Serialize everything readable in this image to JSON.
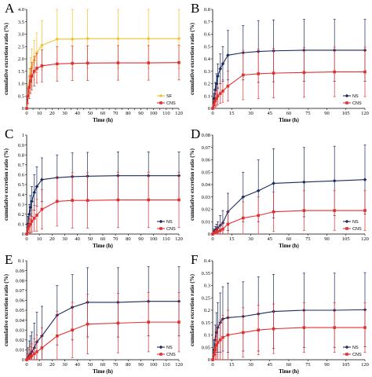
{
  "colors": {
    "SF": "#f2c12e",
    "CNS": "#e03131",
    "NS": "#1b2a5e"
  },
  "chart_data": [
    {
      "panel": "A",
      "type": "line",
      "x": [
        0,
        1,
        2,
        3,
        4,
        6,
        8,
        12,
        24,
        36,
        48,
        72,
        96,
        120
      ],
      "xlabel": "Time (h)",
      "ylabel": "cumulative excretion ratio (%)",
      "xlim": [
        0,
        120
      ],
      "xticks": [
        0,
        5,
        10,
        15,
        20,
        25,
        30,
        35,
        40,
        45,
        50,
        55,
        60,
        65,
        70,
        75,
        80,
        85,
        90,
        95,
        100,
        105,
        110,
        115,
        120
      ],
      "xtick_labels": [
        "0",
        "",
        "10",
        "",
        "20",
        "",
        "30",
        "",
        "40",
        "",
        "50",
        "",
        "60",
        "",
        "70",
        "",
        "80",
        "",
        "90",
        "",
        "100",
        "",
        "110",
        "",
        "120"
      ],
      "ylim": [
        0,
        4
      ],
      "yticks": [
        0,
        0.5,
        1.0,
        1.5,
        2.0,
        2.5,
        3.0,
        3.5,
        4.0
      ],
      "ytick_labels": [
        "0",
        "0.5",
        "1.0",
        "1.5",
        "2.0",
        "2.5",
        "3.0",
        "3.5",
        "4.0"
      ],
      "legend_position": "bottom-right",
      "series": [
        {
          "name": "SF",
          "color": "#f2c12e",
          "marker": "circle",
          "values": [
            0,
            0.55,
            1.0,
            1.35,
            1.65,
            1.95,
            2.25,
            2.55,
            2.8,
            2.8,
            2.82,
            2.82,
            2.82,
            2.82
          ],
          "errors": [
            0,
            0.4,
            0.6,
            0.7,
            0.75,
            0.8,
            0.8,
            1.0,
            1.2,
            1.2,
            1.2,
            1.2,
            1.2,
            1.2
          ]
        },
        {
          "name": "CNS",
          "color": "#e03131",
          "marker": "square",
          "values": [
            0,
            0.5,
            0.85,
            1.1,
            1.3,
            1.5,
            1.62,
            1.72,
            1.8,
            1.82,
            1.83,
            1.84,
            1.84,
            1.85
          ],
          "errors": [
            0,
            0.3,
            0.45,
            0.5,
            0.55,
            0.6,
            0.6,
            0.65,
            0.7,
            0.7,
            0.7,
            0.7,
            0.7,
            0.7
          ]
        }
      ]
    },
    {
      "panel": "B",
      "type": "line",
      "x": [
        0,
        1,
        2,
        3,
        4,
        6,
        8,
        12,
        24,
        36,
        48,
        72,
        96,
        120
      ],
      "xlabel": "Time (h)",
      "ylabel": "cumulative excretion ratio (%)",
      "xlim": [
        0,
        120
      ],
      "xticks": [
        0,
        15,
        30,
        45,
        60,
        75,
        90,
        105,
        120
      ],
      "xtick_labels": [
        "0",
        "15",
        "30",
        "45",
        "60",
        "75",
        "90",
        "105",
        "120"
      ],
      "ylim": [
        0,
        0.8
      ],
      "yticks": [
        0,
        0.1,
        0.2,
        0.3,
        0.4,
        0.5,
        0.6,
        0.7,
        0.8
      ],
      "ytick_labels": [
        "0",
        "0.1",
        "0.2",
        "0.3",
        "0.4",
        "0.5",
        "0.6",
        "0.7",
        "0.8"
      ],
      "legend_position": "bottom-right",
      "series": [
        {
          "name": "NS",
          "color": "#1b2a5e",
          "marker": "diamond",
          "values": [
            0,
            0.08,
            0.15,
            0.2,
            0.26,
            0.32,
            0.36,
            0.43,
            0.45,
            0.46,
            0.465,
            0.47,
            0.47,
            0.47
          ],
          "errors": [
            0,
            0.04,
            0.06,
            0.08,
            0.1,
            0.12,
            0.14,
            0.2,
            0.22,
            0.25,
            0.25,
            0.25,
            0.25,
            0.25
          ]
        },
        {
          "name": "CNS",
          "color": "#e03131",
          "marker": "square",
          "values": [
            0,
            0.03,
            0.06,
            0.08,
            0.1,
            0.12,
            0.14,
            0.18,
            0.27,
            0.28,
            0.285,
            0.29,
            0.295,
            0.295
          ],
          "errors": [
            0,
            0.03,
            0.05,
            0.06,
            0.07,
            0.08,
            0.09,
            0.12,
            0.2,
            0.2,
            0.2,
            0.2,
            0.2,
            0.2
          ]
        }
      ]
    },
    {
      "panel": "C",
      "type": "line",
      "x": [
        0,
        1,
        2,
        3,
        4,
        6,
        8,
        12,
        24,
        36,
        48,
        72,
        96,
        120
      ],
      "xlabel": "Time (h)",
      "ylabel": "cumulative excretion ratio (%)",
      "xlim": [
        0,
        120
      ],
      "xticks": [
        0,
        10,
        20,
        30,
        40,
        50,
        60,
        70,
        80,
        90,
        100,
        110,
        120
      ],
      "xtick_labels": [
        "0",
        "10",
        "20",
        "30",
        "40",
        "50",
        "60",
        "70",
        "80",
        "90",
        "100",
        "110",
        "120"
      ],
      "ylim": [
        0,
        1
      ],
      "yticks": [
        0,
        0.1,
        0.2,
        0.3,
        0.4,
        0.5,
        0.6,
        0.7,
        0.8,
        0.9,
        1
      ],
      "ytick_labels": [
        "0",
        "0.1",
        "0.2",
        "0.3",
        "0.4",
        "0.5",
        "0.6",
        "0.7",
        "0.8",
        "0.9",
        "1"
      ],
      "legend_position": "bottom-right",
      "series": [
        {
          "name": "NS",
          "color": "#1b2a5e",
          "marker": "diamond",
          "values": [
            0,
            0.1,
            0.2,
            0.27,
            0.33,
            0.42,
            0.48,
            0.55,
            0.57,
            0.58,
            0.585,
            0.59,
            0.59,
            0.59
          ],
          "errors": [
            0,
            0.08,
            0.1,
            0.12,
            0.15,
            0.18,
            0.2,
            0.22,
            0.23,
            0.24,
            0.24,
            0.24,
            0.24,
            0.24
          ]
        },
        {
          "name": "CNS",
          "color": "#e03131",
          "marker": "square",
          "values": [
            0,
            0.05,
            0.08,
            0.1,
            0.13,
            0.16,
            0.19,
            0.25,
            0.33,
            0.34,
            0.34,
            0.345,
            0.345,
            0.345
          ],
          "errors": [
            0,
            0.05,
            0.07,
            0.09,
            0.11,
            0.13,
            0.16,
            0.2,
            0.25,
            0.28,
            0.28,
            0.28,
            0.28,
            0.28
          ]
        }
      ]
    },
    {
      "panel": "D",
      "type": "line",
      "x": [
        0,
        1,
        2,
        3,
        4,
        6,
        8,
        12,
        24,
        36,
        48,
        72,
        96,
        120
      ],
      "xlabel": "Time (h)",
      "ylabel": "cumulative excretion ratio (%)",
      "xlim": [
        0,
        120
      ],
      "xticks": [
        0,
        15,
        30,
        45,
        60,
        75,
        90,
        105,
        120
      ],
      "xtick_labels": [
        "0",
        "15",
        "30",
        "45",
        "60",
        "75",
        "90",
        "105",
        "120"
      ],
      "ylim": [
        0,
        0.08
      ],
      "yticks": [
        0,
        0.01,
        0.02,
        0.03,
        0.04,
        0.05,
        0.06,
        0.07,
        0.08
      ],
      "ytick_labels": [
        "0",
        "0.01",
        "0.02",
        "0.03",
        "0.04",
        "0.05",
        "0.06",
        "0.07",
        "0.08"
      ],
      "legend_position": "bottom-right",
      "series": [
        {
          "name": "NS",
          "color": "#1b2a5e",
          "marker": "diamond",
          "values": [
            0,
            0.002,
            0.003,
            0.004,
            0.005,
            0.007,
            0.009,
            0.018,
            0.03,
            0.035,
            0.041,
            0.042,
            0.043,
            0.044
          ],
          "errors": [
            0,
            0.002,
            0.003,
            0.004,
            0.005,
            0.008,
            0.01,
            0.015,
            0.02,
            0.025,
            0.028,
            0.028,
            0.028,
            0.028
          ]
        },
        {
          "name": "CNS",
          "color": "#e03131",
          "marker": "square",
          "values": [
            0,
            0.001,
            0.001,
            0.002,
            0.002,
            0.003,
            0.004,
            0.008,
            0.013,
            0.015,
            0.018,
            0.019,
            0.019,
            0.019
          ],
          "errors": [
            0,
            0.001,
            0.002,
            0.002,
            0.003,
            0.004,
            0.005,
            0.01,
            0.013,
            0.015,
            0.016,
            0.016,
            0.016,
            0.016
          ]
        }
      ]
    },
    {
      "panel": "E",
      "type": "line",
      "x": [
        0,
        1,
        2,
        3,
        4,
        6,
        8,
        12,
        24,
        36,
        48,
        72,
        96,
        120
      ],
      "xlabel": "Time (h)",
      "ylabel": "cumulative excretion ratio (%)",
      "xlim": [
        0,
        120
      ],
      "xticks": [
        0,
        10,
        20,
        30,
        40,
        50,
        60,
        70,
        80,
        90,
        100,
        110,
        120
      ],
      "xtick_labels": [
        "0",
        "10",
        "20",
        "30",
        "40",
        "50",
        "60",
        "70",
        "80",
        "90",
        "100",
        "110",
        "120"
      ],
      "ylim": [
        0,
        0.1
      ],
      "yticks": [
        0,
        0.01,
        0.02,
        0.03,
        0.04,
        0.05,
        0.06,
        0.07,
        0.08,
        0.09,
        0.1
      ],
      "ytick_labels": [
        "0",
        "0.01",
        "0.02",
        "0.03",
        "0.04",
        "0.05",
        "0.06",
        "0.07",
        "0.08",
        "0.09",
        "0.1"
      ],
      "legend_position": "bottom-right",
      "series": [
        {
          "name": "NS",
          "color": "#1b2a5e",
          "marker": "diamond",
          "values": [
            0,
            0.002,
            0.004,
            0.006,
            0.008,
            0.012,
            0.018,
            0.024,
            0.045,
            0.053,
            0.058,
            0.058,
            0.059,
            0.059
          ],
          "errors": [
            0,
            0.01,
            0.015,
            0.018,
            0.02,
            0.025,
            0.03,
            0.03,
            0.03,
            0.033,
            0.035,
            0.035,
            0.035,
            0.035
          ]
        },
        {
          "name": "CNS",
          "color": "#e03131",
          "marker": "square",
          "values": [
            0,
            0.001,
            0.002,
            0.003,
            0.004,
            0.006,
            0.008,
            0.012,
            0.024,
            0.03,
            0.036,
            0.037,
            0.038,
            0.038
          ],
          "errors": [
            0,
            0.005,
            0.008,
            0.01,
            0.012,
            0.015,
            0.017,
            0.02,
            0.025,
            0.028,
            0.03,
            0.03,
            0.03,
            0.03
          ]
        }
      ]
    },
    {
      "panel": "F",
      "type": "line",
      "x": [
        0,
        1,
        2,
        3,
        4,
        6,
        8,
        12,
        24,
        36,
        48,
        72,
        96,
        120
      ],
      "xlabel": "Time (h)",
      "ylabel": "cumulative excretion ratio (%)",
      "xlim": [
        0,
        120
      ],
      "xticks": [
        0,
        15,
        30,
        45,
        60,
        75,
        90,
        105,
        120
      ],
      "xtick_labels": [
        "0",
        "15",
        "30",
        "45",
        "60",
        "75",
        "90",
        "105",
        "120"
      ],
      "ylim": [
        0,
        0.4
      ],
      "yticks": [
        0,
        0.05,
        0.1,
        0.15,
        0.2,
        0.25,
        0.3,
        0.35,
        0.4
      ],
      "ytick_labels": [
        "0",
        "0.05",
        "0.1",
        "0.15",
        "0.2",
        "0.25",
        "0.3",
        "0.35",
        "0.4"
      ],
      "legend_position": "bottom-right",
      "series": [
        {
          "name": "NS",
          "color": "#1b2a5e",
          "marker": "diamond",
          "values": [
            0,
            0.04,
            0.08,
            0.11,
            0.13,
            0.15,
            0.165,
            0.17,
            0.175,
            0.185,
            0.195,
            0.2,
            0.2,
            0.202
          ],
          "errors": [
            0,
            0.04,
            0.06,
            0.08,
            0.1,
            0.12,
            0.13,
            0.14,
            0.14,
            0.15,
            0.15,
            0.15,
            0.15,
            0.15
          ]
        },
        {
          "name": "CNS",
          "color": "#e03131",
          "marker": "square",
          "values": [
            0,
            0.02,
            0.04,
            0.06,
            0.07,
            0.08,
            0.09,
            0.1,
            0.11,
            0.12,
            0.125,
            0.13,
            0.13,
            0.13
          ],
          "errors": [
            0,
            0.03,
            0.05,
            0.06,
            0.07,
            0.08,
            0.09,
            0.1,
            0.1,
            0.1,
            0.1,
            0.1,
            0.1,
            0.1
          ]
        }
      ]
    }
  ]
}
